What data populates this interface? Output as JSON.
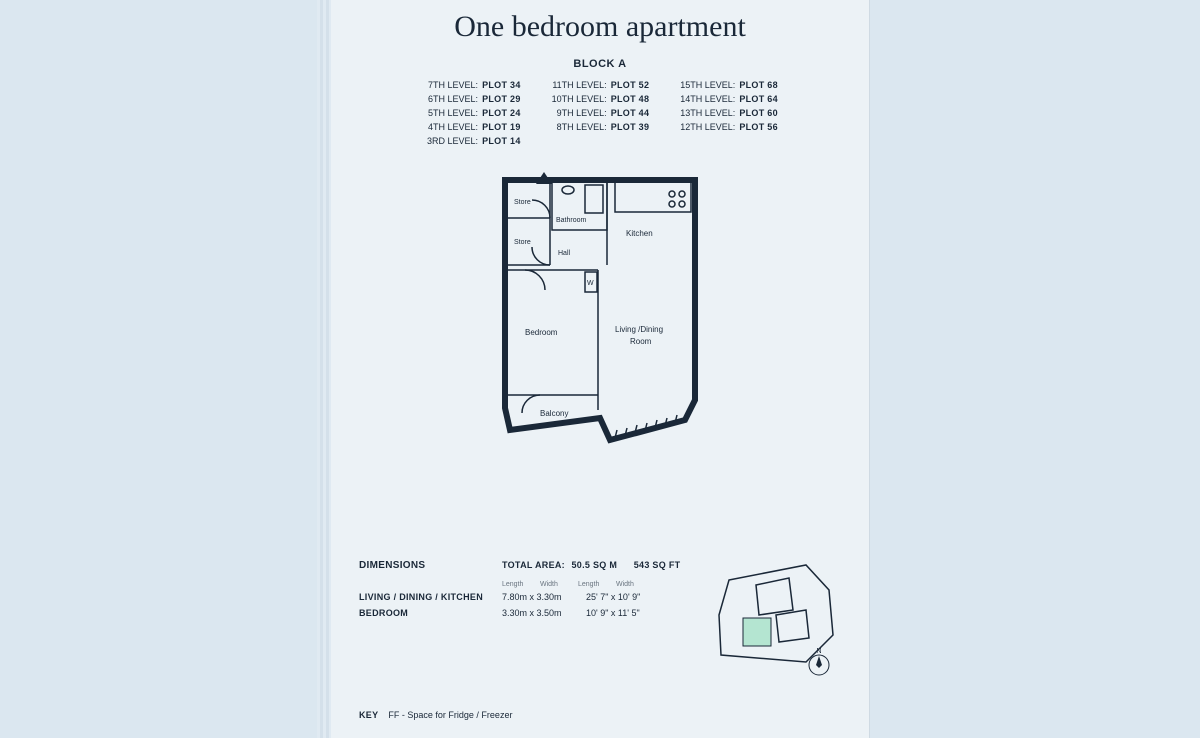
{
  "title": "One bedroom apartment",
  "block_label": "BLOCK A",
  "plot_columns": [
    [
      {
        "level": "7TH LEVEL:",
        "plot": "PLOT 34"
      },
      {
        "level": "6TH LEVEL:",
        "plot": "PLOT 29"
      },
      {
        "level": "5TH LEVEL:",
        "plot": "PLOT 24"
      },
      {
        "level": "4TH LEVEL:",
        "plot": "PLOT 19"
      },
      {
        "level": "3RD LEVEL:",
        "plot": "PLOT 14"
      }
    ],
    [
      {
        "level": "11TH LEVEL:",
        "plot": "PLOT 52"
      },
      {
        "level": "10TH LEVEL:",
        "plot": "PLOT 48"
      },
      {
        "level": "9TH LEVEL:",
        "plot": "PLOT 44"
      },
      {
        "level": "8TH LEVEL:",
        "plot": "PLOT 39"
      }
    ],
    [
      {
        "level": "15TH LEVEL:",
        "plot": "PLOT 68"
      },
      {
        "level": "14TH LEVEL:",
        "plot": "PLOT 64"
      },
      {
        "level": "13TH LEVEL:",
        "plot": "PLOT 60"
      },
      {
        "level": "12TH LEVEL:",
        "plot": "PLOT 56"
      }
    ]
  ],
  "floorplan": {
    "rooms": {
      "store1": "Store",
      "store2": "Store",
      "bathroom": "Bathroom",
      "hall": "Hall",
      "kitchen": "Kitchen",
      "w": "W",
      "bedroom": "Bedroom",
      "living": "Living /Dining",
      "living2": "Room",
      "balcony": "Balcony"
    },
    "colors": {
      "wall": "#1a2838",
      "bg": "#ffffff"
    }
  },
  "dimensions": {
    "heading": "DIMENSIONS",
    "total_label": "TOTAL AREA:",
    "total_sqm": "50.5 SQ M",
    "total_sqft": "543 SQ FT",
    "lw_headers": [
      "Length",
      "Width",
      "Length",
      "Width"
    ],
    "rows": [
      {
        "name": "LIVING / DINING / KITCHEN",
        "metric": "7.80m x 3.30m",
        "imperial": "25' 7\" x 10' 9\""
      },
      {
        "name": "BEDROOM",
        "metric": "3.30m x 3.50m",
        "imperial": "10' 9\" x 11' 5\""
      }
    ]
  },
  "key": {
    "label": "KEY",
    "text": "FF - Space for Fridge / Freezer"
  },
  "compass": "N",
  "colors": {
    "page_bg": "#ecf2f6",
    "outer_bg": "#dbe7f0",
    "text": "#1a2838",
    "highlight": "#b4e5d1"
  }
}
